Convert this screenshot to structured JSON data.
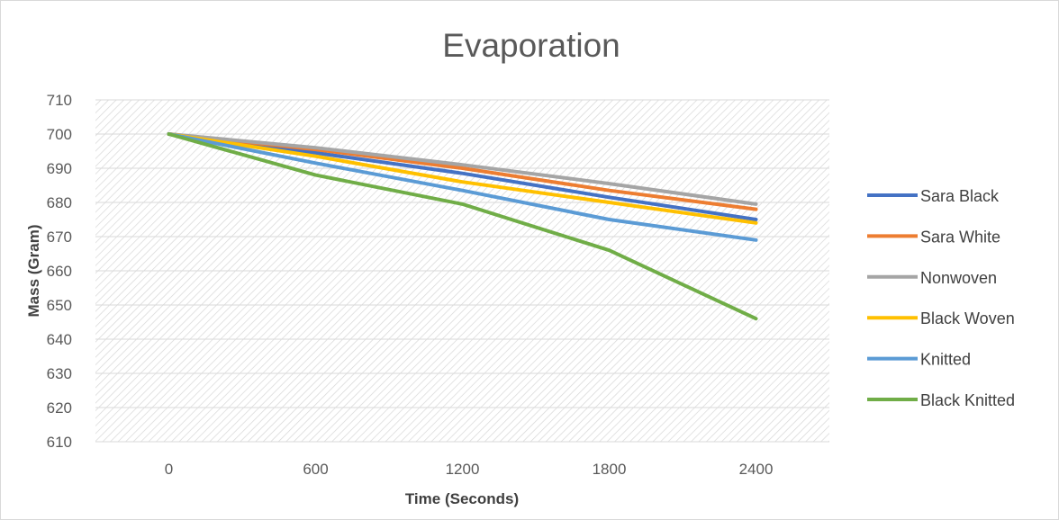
{
  "chart_data": {
    "type": "line",
    "title": "Evaporation",
    "xlabel": "Time  (Seconds)",
    "ylabel": "Mass (Gram)",
    "x": [
      "0",
      "600",
      "1200",
      "1800",
      "2400"
    ],
    "ylim": [
      610,
      710
    ],
    "yticks": [
      610,
      620,
      630,
      640,
      650,
      660,
      670,
      680,
      690,
      700,
      710
    ],
    "grid": true,
    "legend_position": "right",
    "series": [
      {
        "name": "Sara Black",
        "color": "#4472C4",
        "values": [
          700,
          694.5,
          688.5,
          681.5,
          675
        ]
      },
      {
        "name": "Sara White",
        "color": "#ED7D31",
        "values": [
          700,
          695.5,
          690.0,
          683.5,
          678
        ]
      },
      {
        "name": "Nonwoven",
        "color": "#A5A5A5",
        "values": [
          700,
          696.0,
          691.0,
          685.5,
          679.5
        ]
      },
      {
        "name": "Black Woven",
        "color": "#FFC000",
        "values": [
          700,
          693.5,
          686.0,
          680.0,
          674
        ]
      },
      {
        "name": "Knitted",
        "color": "#5B9BD5",
        "values": [
          700,
          691.5,
          683.5,
          675.0,
          669
        ]
      },
      {
        "name": "Black Knitted",
        "color": "#70AD47",
        "values": [
          700,
          688.0,
          679.5,
          666.0,
          646
        ]
      }
    ]
  }
}
